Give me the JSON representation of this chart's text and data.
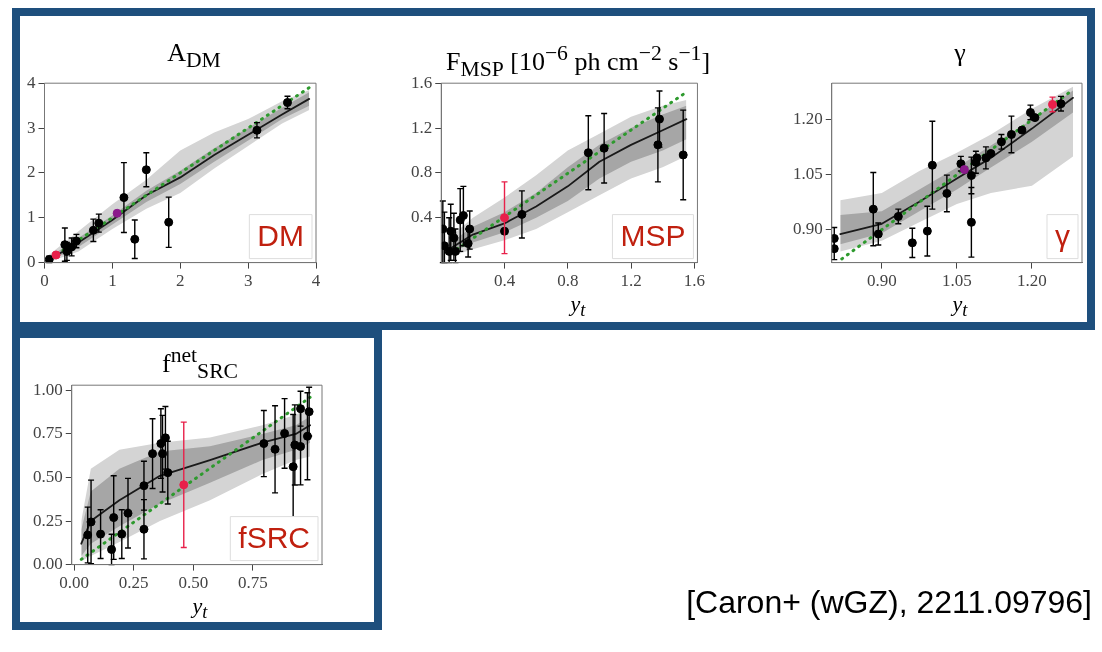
{
  "chart_data": [
    {
      "type": "scatter",
      "title": "A$_{DM}$",
      "xlim": [
        0,
        4
      ],
      "ylim": [
        0,
        4
      ],
      "xticks": [
        0,
        1,
        2,
        3,
        4
      ],
      "yticks": [
        0,
        1,
        2,
        3,
        4
      ],
      "annotations": [
        "DM"
      ],
      "series": [
        {
          "type": "line",
          "color": "#d4d4d4",
          "x": [
            0.05,
            0.5,
            1,
            1.5,
            2,
            2.5,
            3,
            3.5,
            3.9
          ],
          "values": [
            null,
            null,
            null,
            null,
            null,
            null,
            null,
            null,
            null
          ],
          "lower": [
            0,
            0.25,
            0.75,
            1.2,
            1.55,
            2.1,
            2.6,
            3.1,
            3.4
          ],
          "upper": [
            0.15,
            0.7,
            1.3,
            1.85,
            2.5,
            2.9,
            3.2,
            3.6,
            3.85
          ]
        },
        {
          "type": "line",
          "color": "#1a1a1a",
          "line_style": "solid",
          "x": [
            0.05,
            0.5,
            1,
            1.5,
            2,
            2.5,
            3,
            3.5,
            3.9
          ],
          "values": [
            0.05,
            0.45,
            0.95,
            1.5,
            1.9,
            2.4,
            2.85,
            3.3,
            3.65
          ],
          "lower": [
            0.02,
            0.35,
            0.85,
            1.35,
            1.75,
            2.25,
            2.72,
            3.2,
            3.5
          ],
          "upper": [
            0.1,
            0.55,
            1.05,
            1.6,
            2.05,
            2.55,
            3,
            3.45,
            3.8
          ]
        },
        {
          "type": "line",
          "color": "#2e9a2e",
          "line_style": "dotted",
          "x": [
            0.1,
            3.9
          ],
          "values": [
            0.1,
            3.9
          ]
        },
        {
          "type": "scatter",
          "marker": "circle",
          "color": "#000000",
          "x": [
            0.07,
            0.3,
            0.33,
            0.4,
            0.47,
            0.72,
            0.8,
            1.17,
            1.33,
            1.5,
            1.83,
            3.13,
            3.58
          ],
          "values": [
            0.07,
            0.4,
            0.25,
            0.35,
            0.48,
            0.72,
            0.88,
            1.45,
            0.52,
            2.07,
            0.9,
            2.95,
            3.57
          ],
          "errors": [
            0.07,
            0.37,
            0.2,
            0.2,
            0.15,
            0.25,
            0.2,
            0.78,
            0.43,
            0.38,
            0.56,
            0.17,
            0.14
          ]
        },
        {
          "type": "scatter",
          "marker": "circle",
          "color": "#e8204a",
          "x": [
            0.17
          ],
          "values": [
            0.17
          ]
        },
        {
          "type": "scatter",
          "marker": "circle",
          "color": "#8b1a8b",
          "x": [
            1.07
          ],
          "values": [
            1.1
          ]
        }
      ]
    },
    {
      "type": "scatter",
      "title": "F$_{MSP}$  [10$^{−6}$ ph cm$^{−2}$ s$^{−1}$]",
      "xlabel": "y$_{t}$",
      "xlim": [
        0,
        1.62
      ],
      "ylim": [
        0,
        1.6
      ],
      "xticks": [
        0.4,
        0.8,
        1.2,
        1.6
      ],
      "yticks": [
        0.4,
        0.8,
        1.2,
        1.6
      ],
      "annotations": [
        "MSP"
      ],
      "series": [
        {
          "type": "line",
          "color": "#d4d4d4",
          "x": [
            0.05,
            0.2,
            0.4,
            0.6,
            0.8,
            1,
            1.2,
            1.4,
            1.55
          ],
          "values": [
            null,
            null,
            null,
            null,
            null,
            null,
            null,
            null,
            null
          ],
          "lower": [
            0.05,
            0.12,
            0.2,
            0.3,
            0.45,
            0.6,
            0.75,
            0.85,
            0.95
          ],
          "upper": [
            0.22,
            0.4,
            0.58,
            0.78,
            1,
            1.15,
            1.3,
            1.4,
            1.45
          ]
        },
        {
          "type": "line",
          "color": "#1a1a1a",
          "line_style": "solid",
          "x": [
            0.05,
            0.2,
            0.4,
            0.6,
            0.8,
            1,
            1.2,
            1.4,
            1.55
          ],
          "values": [
            0.12,
            0.25,
            0.35,
            0.5,
            0.68,
            0.9,
            1.05,
            1.18,
            1.28
          ],
          "lower": [
            0.08,
            0.18,
            0.27,
            0.4,
            0.55,
            0.75,
            0.9,
            1,
            1.1
          ],
          "upper": [
            0.17,
            0.32,
            0.45,
            0.62,
            0.85,
            1.05,
            1.2,
            1.32,
            1.4
          ]
        },
        {
          "type": "line",
          "color": "#2e9a2e",
          "line_style": "dotted",
          "x": [
            0.1,
            1.55
          ],
          "values": [
            0.12,
            1.52
          ]
        },
        {
          "type": "scatter",
          "marker": "circle",
          "color": "#000000",
          "x": [
            0.01,
            0.02,
            0.05,
            0.06,
            0.08,
            0.09,
            0.12,
            0.14,
            0.17,
            0.18,
            0.4,
            0.51,
            0.93,
            1.03,
            1.37,
            1.38,
            1.53
          ],
          "values": [
            0.3,
            0.15,
            0.1,
            0.28,
            0.22,
            0.1,
            0.38,
            0.42,
            0.17,
            0.3,
            0.28,
            0.43,
            0.98,
            1.02,
            1.05,
            1.28,
            0.96
          ],
          "errors": [
            [
              0,
              0.55
            ],
            [
              0,
              0.45
            ],
            [
              0,
              0.4
            ],
            [
              0.02,
              0.52
            ],
            [
              0.02,
              0.44
            ],
            [
              0,
              0.3
            ],
            [
              0.1,
              0.66
            ],
            [
              0.15,
              0.68
            ],
            [
              0.05,
              0.3
            ],
            [
              0.12,
              0.46
            ],
            null,
            0.21,
            0.33,
            0.31,
            0.33,
            0.25,
            0.4
          ]
        },
        {
          "type": "scatter",
          "marker": "circle",
          "color": "#e8204a",
          "x": [
            0.4
          ],
          "values": [
            0.4
          ],
          "errors": [
            0.32
          ]
        }
      ]
    },
    {
      "type": "scatter",
      "title": "γ",
      "xlabel": "y$_{t}$",
      "xlim": [
        0.8,
        1.3
      ],
      "ylim": [
        0.81,
        1.3
      ],
      "xticks": [
        {
          "value": 0.9,
          "label": "0.90"
        },
        {
          "value": 1.05,
          "label": "1.05"
        },
        {
          "value": 1.2,
          "label": "1.20"
        }
      ],
      "yticks": [
        {
          "value": 0.9,
          "label": "0.90"
        },
        {
          "value": 1.05,
          "label": "1.05"
        },
        {
          "value": 1.2,
          "label": "1.20"
        }
      ],
      "annotations": [
        "γ"
      ],
      "series": [
        {
          "type": "line",
          "color": "#d4d4d4",
          "x": [
            0.817,
            0.9,
            0.975,
            1.05,
            1.118,
            1.2,
            1.282
          ],
          "values": [
            null,
            null,
            null,
            null,
            null,
            null,
            null
          ],
          "lower": [
            0.84,
            0.87,
            0.92,
            0.97,
            1,
            1.02,
            1.1
          ],
          "upper": [
            0.98,
            1,
            1.06,
            1.11,
            1.16,
            1.23,
            1.29
          ]
        },
        {
          "type": "line",
          "color": "#1a1a1a",
          "line_style": "solid",
          "x": [
            0.817,
            0.9,
            0.975,
            1.05,
            1.118,
            1.2,
            1.282
          ],
          "values": [
            0.888,
            0.916,
            0.976,
            1.04,
            1.096,
            1.176,
            1.26
          ],
          "lower": [
            0.86,
            0.89,
            0.95,
            1.01,
            1.07,
            1.14,
            1.22
          ],
          "upper": [
            0.94,
            0.95,
            1.01,
            1.07,
            1.13,
            1.2,
            1.28
          ]
        },
        {
          "type": "line",
          "color": "#2e9a2e",
          "line_style": "dotted",
          "x": [
            0.82,
            1.28
          ],
          "values": [
            0.82,
            1.28
          ]
        },
        {
          "type": "scatter",
          "marker": "circle",
          "color": "#000000",
          "x": [
            0.805,
            0.805,
            0.883,
            0.893,
            0.933,
            0.961,
            0.991,
            1.001,
            1.03,
            1.058,
            1.079,
            1.079,
            1.088,
            1.09,
            1.108,
            1.118,
            1.139,
            1.159,
            1.18,
            1.197,
            1.206,
            1.258
          ],
          "values": [
            0.848,
            0.876,
            0.956,
            0.888,
            0.936,
            0.864,
            0.896,
            1.076,
            0.999,
            1.08,
            0.92,
            1.048,
            1.084,
            1.096,
            1.096,
            1.108,
            1.14,
            1.16,
            1.172,
            1.22,
            1.206,
            1.244
          ],
          "errors": [
            0.03,
            0.03,
            0.1,
            0.03,
            0.02,
            0.04,
            0.068,
            0.12,
            0.05,
            0.02,
            0.095,
            0.05,
            0.03,
            null,
            0.03,
            null,
            0.02,
            0.05,
            null,
            0.02,
            null,
            0.02
          ]
        },
        {
          "type": "scatter",
          "marker": "circle",
          "color": "#e8204a",
          "x": [
            1.241
          ],
          "values": [
            1.242
          ],
          "errors": [
            0.02
          ]
        },
        {
          "type": "scatter",
          "marker": "circle",
          "color": "#8b1a8b",
          "x": [
            1.065
          ],
          "values": [
            1.064
          ]
        }
      ]
    },
    {
      "type": "scatter",
      "title": "f$^{net}$$_{SRC}$",
      "xlabel": "y$_{t}$",
      "xlim": [
        -0.01,
        1.04
      ],
      "ylim": [
        0,
        1.03
      ],
      "xticks": [
        {
          "value": 0,
          "label": "0.00"
        },
        {
          "value": 0.25,
          "label": "0.25"
        },
        {
          "value": 0.5,
          "label": "0.50"
        },
        {
          "value": 0.75,
          "label": "0.75"
        }
      ],
      "yticks": [
        {
          "value": 0,
          "label": "0.00"
        },
        {
          "value": 0.25,
          "label": "0.25"
        },
        {
          "value": 0.5,
          "label": "0.50"
        },
        {
          "value": 0.75,
          "label": "0.75"
        },
        {
          "value": 1,
          "label": "1.00"
        }
      ],
      "annotations": [
        "fSRC",
        "[Caron+ (wGZ), 2211.09796]"
      ],
      "series": [
        {
          "type": "line",
          "color": "#d4d4d4",
          "x": [
            0.03,
            0.07,
            0.19,
            0.36,
            0.57,
            0.79,
            0.93,
            0.99
          ],
          "values": [
            null,
            null,
            null,
            null,
            null,
            null,
            null,
            null
          ],
          "lower": [
            0.02,
            0.05,
            0.13,
            0.25,
            0.37,
            0.52,
            0.6,
            0.62
          ],
          "upper": [
            0.25,
            0.55,
            0.66,
            0.7,
            0.73,
            0.8,
            0.86,
            0.9
          ]
        },
        {
          "type": "line",
          "color": "#1a1a1a",
          "line_style": "solid",
          "x": [
            0.03,
            0.07,
            0.19,
            0.36,
            0.57,
            0.79,
            0.93,
            0.99
          ],
          "values": [
            0.12,
            0.25,
            0.37,
            0.51,
            0.6,
            0.7,
            0.75,
            0.8
          ],
          "lower": [
            0.05,
            0.12,
            0.22,
            0.35,
            0.47,
            0.6,
            0.66,
            0.7
          ],
          "upper": [
            0.2,
            0.42,
            0.55,
            0.65,
            0.68,
            0.75,
            0.8,
            0.85
          ]
        },
        {
          "type": "line",
          "color": "#2e9a2e",
          "line_style": "dotted",
          "x": [
            0.03,
            0.99
          ],
          "values": [
            0.03,
            0.96
          ]
        },
        {
          "type": "scatter",
          "marker": "circle",
          "color": "#000000",
          "x": [
            0.057,
            0.071,
            0.111,
            0.157,
            0.166,
            0.2,
            0.226,
            0.293,
            0.293,
            0.329,
            0.364,
            0.371,
            0.383,
            0.393,
            0.796,
            0.843,
            0.883,
            0.919,
            0.926,
            0.95,
            0.95,
            0.979,
            0.986
          ],
          "values": [
            0.17,
            0.245,
            0.175,
            0.087,
            0.27,
            0.175,
            0.295,
            0.203,
            0.453,
            0.637,
            0.695,
            0.637,
            0.728,
            0.528,
            0.695,
            0.662,
            0.753,
            0.562,
            0.687,
            0.895,
            0.678,
            0.737,
            0.878
          ],
          "errors": [
            0.16,
            0.24,
            0.14,
            0.087,
            0.24,
            0.14,
            0.2,
            0.17,
            0.14,
            0.2,
            0.2,
            0.22,
            0.18,
            0.18,
            0.19,
            0.25,
            0.2,
            0.3,
            0.23,
            0.1,
            0.22,
            0.25,
            0.14
          ]
        },
        {
          "type": "scatter",
          "marker": "circle",
          "color": "#e8204a",
          "x": [
            0.46
          ],
          "values": [
            0.458
          ],
          "errors": [
            0.36
          ]
        }
      ]
    }
  ]
}
